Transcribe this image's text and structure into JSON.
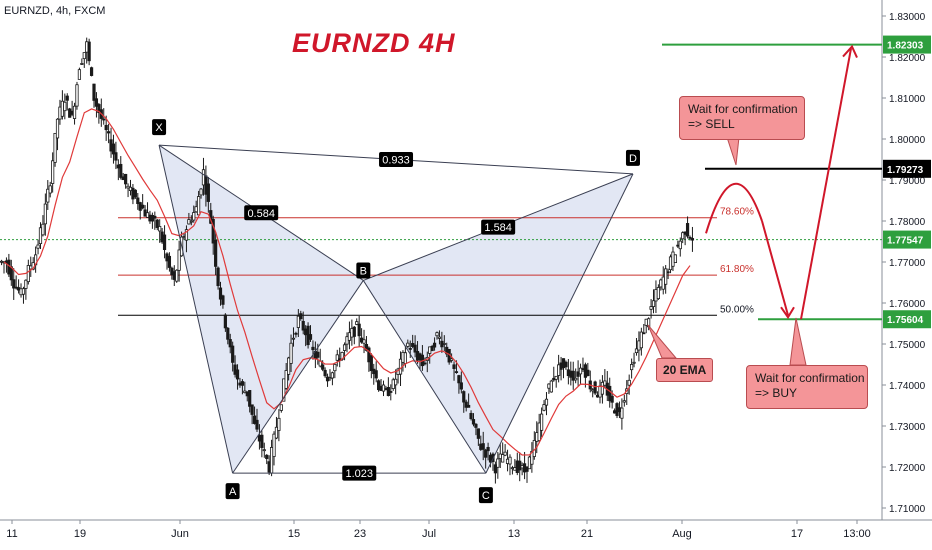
{
  "symbol": "EURNZD, 4h, FXCM",
  "title": "EURNZD  4H",
  "colors": {
    "candle": "#1a1a1a",
    "ema": "#e03a3a",
    "accent_red": "#d0172a",
    "green": "#2e9f3e",
    "pattern_fill": "#dde3f2",
    "pattern_line": "#3a3f52",
    "fib_line": "#c9302c",
    "price_dotted": "#2e9f3e"
  },
  "chart_data": {
    "type": "candlestick",
    "ylim": [
      1.705,
      1.835
    ],
    "x_ticks": [
      "11",
      "19",
      "Jun",
      "15",
      "23",
      "Jul",
      "13",
      "21",
      "Aug",
      "17",
      "13:00"
    ],
    "y_ticks": [
      "1.83000",
      "1.82000",
      "1.81000",
      "1.80000",
      "1.79000",
      "1.78000",
      "1.77000",
      "1.76000",
      "1.75000",
      "1.74000",
      "1.73000",
      "1.72000",
      "1.71000"
    ],
    "price_labels": [
      {
        "value": "1.82303",
        "color": "green"
      },
      {
        "value": "1.79273",
        "color": "black"
      },
      {
        "value": "1.77547",
        "color": "green"
      },
      {
        "value": "1.75604",
        "color": "green"
      }
    ],
    "current_price": 1.77547,
    "pattern_points": [
      {
        "label": "X",
        "date": "May 29",
        "price": 1.7985
      },
      {
        "label": "A",
        "date": "Jun 7",
        "price": 1.7185
      },
      {
        "label": "B",
        "date": "Jun 23",
        "price": 1.7655
      },
      {
        "label": "C",
        "date": "Jul 8",
        "price": 1.7185
      },
      {
        "label": "D",
        "date": "Jul 26",
        "price": 1.7915
      }
    ],
    "ratios": [
      {
        "value": "0.933",
        "between": "X-D"
      },
      {
        "value": "0.584",
        "between": "X-B"
      },
      {
        "value": "1.584",
        "between": "B-D"
      },
      {
        "value": "1.023",
        "between": "A-C"
      }
    ],
    "fib_levels": [
      {
        "label": "78.60%",
        "price": 1.7808
      },
      {
        "label": "61.80%",
        "price": 1.7668
      },
      {
        "label": "50.00%",
        "price": 1.757
      }
    ],
    "horizontal_levels": [
      {
        "price": 1.82303,
        "color": "green"
      },
      {
        "price": 1.79273,
        "color": "black"
      },
      {
        "price": 1.75604,
        "color": "green"
      }
    ],
    "candles_close_path": [
      1.77,
      1.765,
      1.762,
      1.768,
      1.772,
      1.78,
      1.79,
      1.805,
      1.81,
      1.805,
      1.818,
      1.823,
      1.81,
      1.805,
      1.8,
      1.795,
      1.79,
      1.787,
      1.785,
      1.782,
      1.78,
      1.778,
      1.77,
      1.765,
      1.775,
      1.78,
      1.783,
      1.792,
      1.78,
      1.765,
      1.755,
      1.745,
      1.74,
      1.738,
      1.73,
      1.725,
      1.72,
      1.73,
      1.74,
      1.75,
      1.756,
      1.753,
      1.748,
      1.745,
      1.742,
      1.745,
      1.748,
      1.752,
      1.754,
      1.75,
      1.745,
      1.74,
      1.738,
      1.74,
      1.745,
      1.75,
      1.748,
      1.745,
      1.748,
      1.752,
      1.75,
      1.745,
      1.74,
      1.735,
      1.73,
      1.725,
      1.723,
      1.72,
      1.723,
      1.721,
      1.72,
      1.719,
      1.723,
      1.73,
      1.738,
      1.742,
      1.745,
      1.743,
      1.742,
      1.745,
      1.74,
      1.738,
      1.74,
      1.735,
      1.733,
      1.74,
      1.747,
      1.752,
      1.757,
      1.762,
      1.766,
      1.77,
      1.774,
      1.778,
      1.776
    ]
  },
  "callouts": {
    "sell_line1": "Wait for confirmation",
    "sell_line2": "=> SELL",
    "buy_line1": "Wait for confirmation",
    "buy_line2": "=> BUY",
    "ema_label": "20 EMA"
  }
}
